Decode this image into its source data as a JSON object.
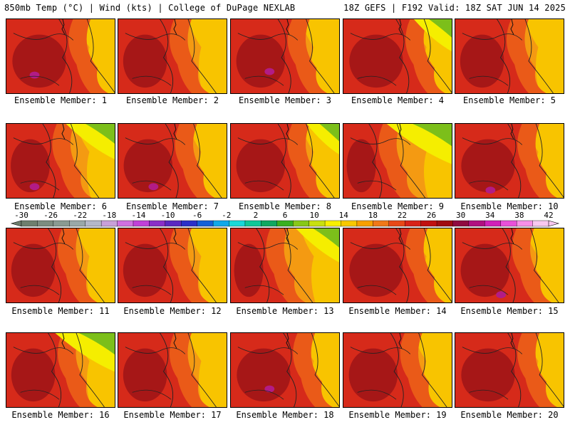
{
  "header": {
    "left": "850mb Temp (°C) | Wind (kts) | College of DuPage NEXLAB",
    "right": "18Z GEFS | F192 Valid: 18Z SAT JUN 14 2025"
  },
  "panels": [
    {
      "caption": "Ensemble Member: 1"
    },
    {
      "caption": "Ensemble Member: 2"
    },
    {
      "caption": "Ensemble Member: 3"
    },
    {
      "caption": "Ensemble Member: 4"
    },
    {
      "caption": "Ensemble Member: 5"
    },
    {
      "caption": "Ensemble Member: 6"
    },
    {
      "caption": "Ensemble Member: 7"
    },
    {
      "caption": "Ensemble Member: 8"
    },
    {
      "caption": "Ensemble Member: 9"
    },
    {
      "caption": "Ensemble Member: 10"
    },
    {
      "caption": "Ensemble Member: 11"
    },
    {
      "caption": "Ensemble Member: 12"
    },
    {
      "caption": "Ensemble Member: 13"
    },
    {
      "caption": "Ensemble Member: 14"
    },
    {
      "caption": "Ensemble Member: 15"
    },
    {
      "caption": "Ensemble Member: 16"
    },
    {
      "caption": "Ensemble Member: 17"
    },
    {
      "caption": "Ensemble Member: 18"
    },
    {
      "caption": "Ensemble Member: 19"
    },
    {
      "caption": "Ensemble Member: 20"
    }
  ],
  "colorbar": {
    "labels": [
      "-30",
      "-26",
      "-22",
      "-18",
      "-14",
      "-10",
      "-6",
      "-2",
      "2",
      "6",
      "10",
      "14",
      "18",
      "22",
      "26",
      "30",
      "34",
      "38",
      "42"
    ],
    "colors": [
      "#6e7f6e",
      "#7c8c80",
      "#8a9a92",
      "#9aa8a8",
      "#b4b8c8",
      "#c8a0d8",
      "#d070e0",
      "#c040d8",
      "#8a30c8",
      "#5a28c0",
      "#2a30c8",
      "#1460d8",
      "#10a8e8",
      "#18d8d8",
      "#10c898",
      "#10a860",
      "#38b020",
      "#88c818",
      "#c8e010",
      "#f8f000",
      "#f8c800",
      "#f8a000",
      "#f07818",
      "#e84818",
      "#d82418",
      "#c01010",
      "#a00c10",
      "#900a40",
      "#b01080",
      "#d020b8",
      "#e850d8",
      "#f890e8",
      "#f8c8f0"
    ]
  },
  "colors": {
    "dark_red": "#9e1418",
    "red": "#d62a1a",
    "orange_red": "#ea5a18",
    "orange": "#f49a12",
    "yellow_orange": "#f8c400",
    "yellow": "#f5ee00",
    "green": "#7cbf1a",
    "magenta": "#b21c86"
  }
}
